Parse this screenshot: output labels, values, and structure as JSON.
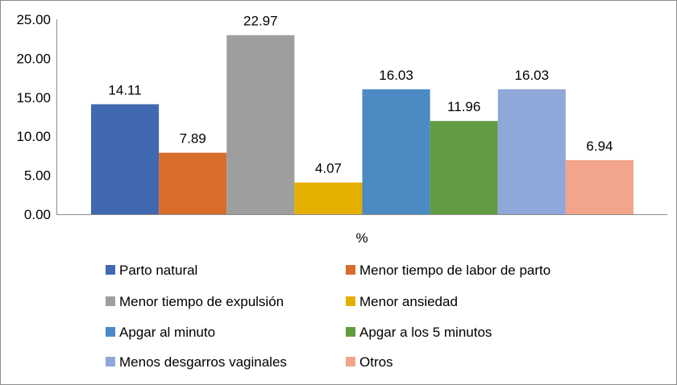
{
  "chart_data": {
    "type": "bar",
    "categories": [
      "%"
    ],
    "xlabel": "%",
    "ylabel": "",
    "title": "",
    "ylim": [
      0,
      25
    ],
    "yticks": [
      "0.00",
      "5.00",
      "10.00",
      "15.00",
      "20.00",
      "25.00"
    ],
    "grid": false,
    "legend_position": "bottom",
    "series": [
      {
        "name": "Parto natural",
        "values": [
          14.11
        ],
        "label": "14.11",
        "color": "#4169B1"
      },
      {
        "name": "Menor tiempo de labor de parto",
        "values": [
          7.89
        ],
        "label": "7.89",
        "color": "#D86D2C"
      },
      {
        "name": "Menor tiempo de expulsión",
        "values": [
          22.97
        ],
        "label": "22.97",
        "color": "#9E9E9E"
      },
      {
        "name": "Menor ansiedad",
        "values": [
          4.07
        ],
        "label": "4.07",
        "color": "#E5AF00"
      },
      {
        "name": "Apgar al minuto",
        "values": [
          16.03
        ],
        "label": "16.03",
        "color": "#4C8AC4"
      },
      {
        "name": "Apgar a los 5 minutos",
        "values": [
          11.96
        ],
        "label": "11.96",
        "color": "#619C42"
      },
      {
        "name": "Menos desgarros vaginales",
        "values": [
          16.03
        ],
        "label": "16.03",
        "color": "#8FA7D9"
      },
      {
        "name": "Otros",
        "values": [
          6.94
        ],
        "label": "6.94",
        "color": "#F2A58B"
      }
    ]
  }
}
